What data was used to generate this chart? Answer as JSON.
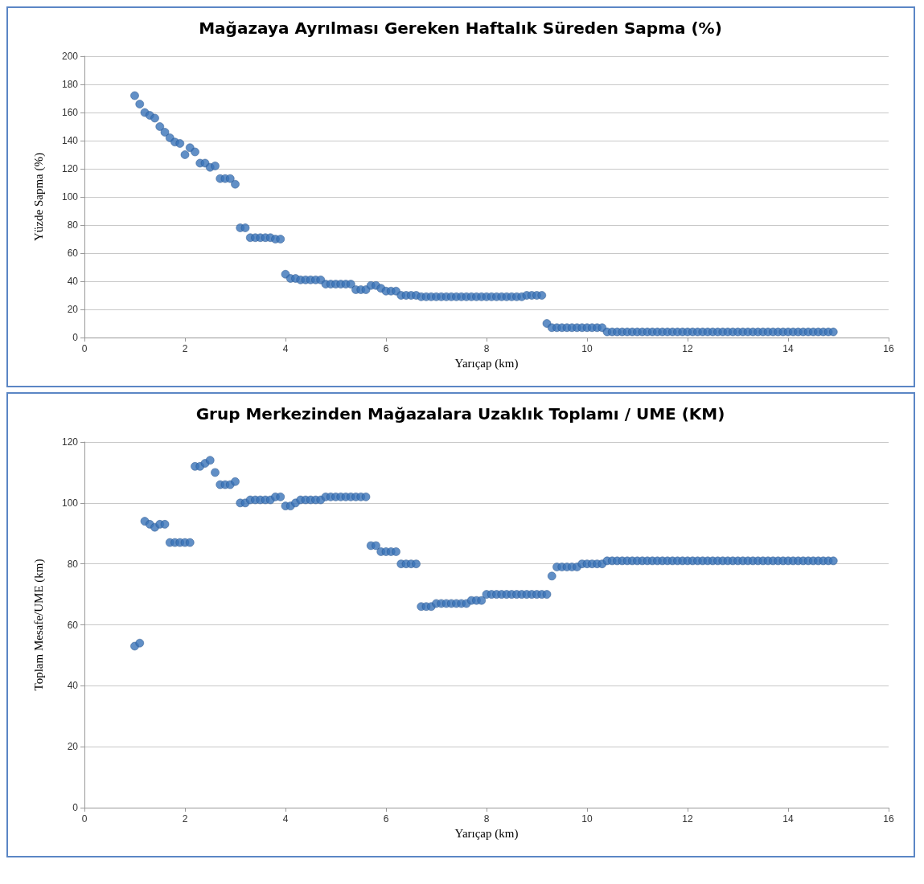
{
  "chart_data": [
    {
      "type": "scatter",
      "title": "Mağazaya Ayrılması Gereken Haftalık Süreden Sapma (%)",
      "xlabel": "Yarıçap (km)",
      "ylabel": "Yüzde Sapma (%)",
      "xlim": [
        0,
        16
      ],
      "xticks": [
        0,
        2,
        4,
        6,
        8,
        10,
        12,
        14,
        16
      ],
      "ylim": [
        0,
        200
      ],
      "yticks": [
        0,
        20,
        40,
        60,
        80,
        100,
        120,
        140,
        160,
        180,
        200
      ],
      "grid": "y",
      "marker": "circle",
      "series": [
        {
          "color": "#3a73b8",
          "x": [
            1.0,
            1.1,
            1.2,
            1.3,
            1.4,
            1.5,
            1.6,
            1.7,
            1.8,
            1.9,
            2.0,
            2.1,
            2.2,
            2.3,
            2.4,
            2.5,
            2.6,
            2.7,
            2.8,
            2.9,
            3.0,
            3.1,
            3.2,
            3.3,
            3.4,
            3.5,
            3.6,
            3.7,
            3.8,
            3.9,
            4.0,
            4.1,
            4.2,
            4.3,
            4.4,
            4.5,
            4.6,
            4.7,
            4.8,
            4.9,
            5.0,
            5.1,
            5.2,
            5.3,
            5.4,
            5.5,
            5.6,
            5.7,
            5.8,
            5.9,
            6.0,
            6.1,
            6.2,
            6.3,
            6.4,
            6.5,
            6.6,
            6.7,
            6.8,
            6.9,
            7.0,
            7.1,
            7.2,
            7.3,
            7.4,
            7.5,
            7.6,
            7.7,
            7.8,
            7.9,
            8.0,
            8.1,
            8.2,
            8.3,
            8.4,
            8.5,
            8.6,
            8.7,
            8.8,
            8.9,
            9.0,
            9.1,
            9.2,
            9.3,
            9.4,
            9.5,
            9.6,
            9.7,
            9.8,
            9.9,
            10.0,
            10.1,
            10.2,
            10.3,
            10.4,
            10.5,
            10.6,
            10.7,
            10.8,
            10.9,
            11.0,
            11.1,
            11.2,
            11.3,
            11.4,
            11.5,
            11.6,
            11.7,
            11.8,
            11.9,
            12.0,
            12.1,
            12.2,
            12.3,
            12.4,
            12.5,
            12.6,
            12.7,
            12.8,
            12.9,
            13.0,
            13.1,
            13.2,
            13.3,
            13.4,
            13.5,
            13.6,
            13.7,
            13.8,
            13.9,
            14.0,
            14.1,
            14.2,
            14.3,
            14.4,
            14.5,
            14.6,
            14.7,
            14.8,
            14.9
          ],
          "values": [
            172,
            166,
            160,
            158,
            156,
            150,
            146,
            142,
            139,
            138,
            130,
            135,
            132,
            124,
            124,
            121,
            122,
            113,
            113,
            113,
            109,
            78,
            78,
            71,
            71,
            71,
            71,
            71,
            70,
            70,
            45,
            42,
            42,
            41,
            41,
            41,
            41,
            41,
            38,
            38,
            38,
            38,
            38,
            38,
            34,
            34,
            34,
            37,
            37,
            35,
            33,
            33,
            33,
            30,
            30,
            30,
            30,
            29,
            29,
            29,
            29,
            29,
            29,
            29,
            29,
            29,
            29,
            29,
            29,
            29,
            29,
            29,
            29,
            29,
            29,
            29,
            29,
            29,
            30,
            30,
            30,
            30,
            10,
            7,
            7,
            7,
            7,
            7,
            7,
            7,
            7,
            7,
            7,
            7,
            4,
            4,
            4,
            4,
            4,
            4,
            4,
            4,
            4,
            4,
            4,
            4,
            4,
            4,
            4,
            4,
            4,
            4,
            4,
            4,
            4,
            4,
            4,
            4,
            4,
            4,
            4,
            4,
            4,
            4,
            4,
            4,
            4,
            4,
            4,
            4,
            4,
            4,
            4,
            4,
            4,
            4,
            4,
            4,
            4,
            4
          ]
        }
      ]
    },
    {
      "type": "scatter",
      "title": "Grup Merkezinden Mağazalara Uzaklık Toplamı / UME (KM)",
      "xlabel": "Yarıçap (km)",
      "ylabel": "Toplam Mesafe/UME (km)",
      "xlim": [
        0,
        16
      ],
      "xticks": [
        0,
        2,
        4,
        6,
        8,
        10,
        12,
        14,
        16
      ],
      "ylim": [
        0,
        120
      ],
      "yticks": [
        0,
        20,
        40,
        60,
        80,
        100,
        120
      ],
      "grid": "y",
      "marker": "circle",
      "series": [
        {
          "color": "#3a73b8",
          "x": [
            1.0,
            1.1,
            1.2,
            1.3,
            1.4,
            1.5,
            1.6,
            1.7,
            1.8,
            1.9,
            2.0,
            2.1,
            2.2,
            2.3,
            2.4,
            2.5,
            2.6,
            2.7,
            2.8,
            2.9,
            3.0,
            3.1,
            3.2,
            3.3,
            3.4,
            3.5,
            3.6,
            3.7,
            3.8,
            3.9,
            4.0,
            4.1,
            4.2,
            4.3,
            4.4,
            4.5,
            4.6,
            4.7,
            4.8,
            4.9,
            5.0,
            5.1,
            5.2,
            5.3,
            5.4,
            5.5,
            5.6,
            5.7,
            5.8,
            5.9,
            6.0,
            6.1,
            6.2,
            6.3,
            6.4,
            6.5,
            6.6,
            6.7,
            6.8,
            6.9,
            7.0,
            7.1,
            7.2,
            7.3,
            7.4,
            7.5,
            7.6,
            7.7,
            7.8,
            7.9,
            8.0,
            8.1,
            8.2,
            8.3,
            8.4,
            8.5,
            8.6,
            8.7,
            8.8,
            8.9,
            9.0,
            9.1,
            9.2,
            9.3,
            9.4,
            9.5,
            9.6,
            9.7,
            9.8,
            9.9,
            10.0,
            10.1,
            10.2,
            10.3,
            10.4,
            10.5,
            10.6,
            10.7,
            10.8,
            10.9,
            11.0,
            11.1,
            11.2,
            11.3,
            11.4,
            11.5,
            11.6,
            11.7,
            11.8,
            11.9,
            12.0,
            12.1,
            12.2,
            12.3,
            12.4,
            12.5,
            12.6,
            12.7,
            12.8,
            12.9,
            13.0,
            13.1,
            13.2,
            13.3,
            13.4,
            13.5,
            13.6,
            13.7,
            13.8,
            13.9,
            14.0,
            14.1,
            14.2,
            14.3,
            14.4,
            14.5,
            14.6,
            14.7,
            14.8,
            14.9
          ],
          "values": [
            53,
            54,
            94,
            93,
            92,
            93,
            93,
            87,
            87,
            87,
            87,
            87,
            112,
            112,
            113,
            114,
            110,
            106,
            106,
            106,
            107,
            100,
            100,
            101,
            101,
            101,
            101,
            101,
            102,
            102,
            99,
            99,
            100,
            101,
            101,
            101,
            101,
            101,
            102,
            102,
            102,
            102,
            102,
            102,
            102,
            102,
            102,
            86,
            86,
            84,
            84,
            84,
            84,
            80,
            80,
            80,
            80,
            66,
            66,
            66,
            67,
            67,
            67,
            67,
            67,
            67,
            67,
            68,
            68,
            68,
            70,
            70,
            70,
            70,
            70,
            70,
            70,
            70,
            70,
            70,
            70,
            70,
            70,
            76,
            79,
            79,
            79,
            79,
            79,
            80,
            80,
            80,
            80,
            80,
            81,
            81,
            81,
            81,
            81,
            81,
            81,
            81,
            81,
            81,
            81,
            81,
            81,
            81,
            81,
            81,
            81,
            81,
            81,
            81,
            81,
            81,
            81,
            81,
            81,
            81,
            81,
            81,
            81,
            81,
            81,
            81,
            81,
            81,
            81,
            81,
            81,
            81,
            81,
            81,
            81,
            81,
            81,
            81,
            81,
            81
          ]
        }
      ]
    }
  ]
}
